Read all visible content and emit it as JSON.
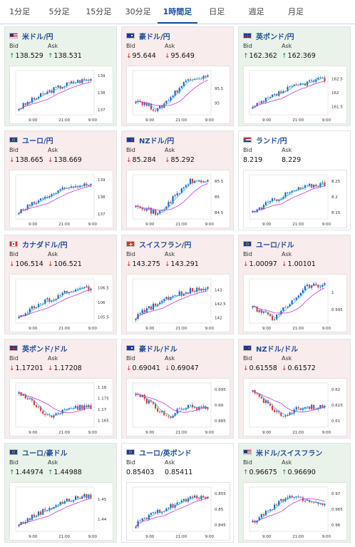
{
  "tabs": [
    "1分足",
    "5分足",
    "15分足",
    "30分足",
    "1時間足",
    "日足",
    "週足",
    "月足"
  ],
  "active_tab": "1時間足",
  "labels": {
    "bid": "Bid",
    "ask": "Ask"
  },
  "colors": {
    "up": "#1b8f2e",
    "down": "#d02020",
    "candle_up": "#1565c0",
    "candle_down": "#e53935",
    "ma_short": "#29b6f6",
    "ma_long": "#cc33cc"
  },
  "cards": [
    {
      "name": "米ドル/円",
      "dir": "up",
      "bid": "138.529",
      "ask": "138.531",
      "flags": [
        "us",
        "jp"
      ],
      "x_ticks": [
        "9:00",
        "21:00",
        "9:00"
      ],
      "y_ticks": [
        "139",
        "138",
        "137"
      ],
      "yr": [
        136.7,
        139.3
      ],
      "shape": "rise"
    },
    {
      "name": "豪ドル/円",
      "dir": "down",
      "bid": "95.644",
      "ask": "95.649",
      "flags": [
        "au",
        "jp"
      ],
      "x_ticks": [
        "9:00",
        "21:00",
        "9:00"
      ],
      "y_ticks": [
        "95.5",
        "95"
      ],
      "yr": [
        94.6,
        96.1
      ],
      "shape": "dipRise"
    },
    {
      "name": "英ポンド/円",
      "dir": "up",
      "bid": "162.362",
      "ask": "162.369",
      "flags": [
        "gb",
        "jp"
      ],
      "x_ticks": [
        "9:00",
        "21:00",
        "9:00"
      ],
      "y_ticks": [
        "162.5",
        "162",
        "161.5"
      ],
      "yr": [
        161.2,
        162.8
      ],
      "shape": "rise"
    },
    {
      "name": "ユーロ/円",
      "dir": "down",
      "bid": "138.665",
      "ask": "138.669",
      "flags": [
        "eu",
        "jp"
      ],
      "x_ticks": [
        "9:00",
        "21:00",
        "9:00"
      ],
      "y_ticks": [
        "139",
        "138",
        "137"
      ],
      "yr": [
        136.7,
        139.3
      ],
      "shape": "rise"
    },
    {
      "name": "NZドル/円",
      "dir": "down",
      "bid": "85.284",
      "ask": "85.292",
      "flags": [
        "nz",
        "jp"
      ],
      "x_ticks": [
        "9:00",
        "21:00",
        "9:00"
      ],
      "y_ticks": [
        "85.5",
        "85",
        "84.5"
      ],
      "yr": [
        84.3,
        85.7
      ],
      "shape": "dipRise"
    },
    {
      "name": "ランド/円",
      "dir": "flat",
      "bid": "8.219",
      "ask": "8.229",
      "flags": [
        "za",
        "jp"
      ],
      "x_ticks": [
        "9:00",
        "21:00",
        "9:00"
      ],
      "y_ticks": [
        "8.25",
        "8.2",
        "8.15"
      ],
      "yr": [
        8.13,
        8.27
      ],
      "shape": "rise"
    },
    {
      "name": "カナダドル/円",
      "dir": "down",
      "bid": "106.514",
      "ask": "106.521",
      "flags": [
        "ca",
        "jp"
      ],
      "x_ticks": [
        "9:00",
        "21:00",
        "9:00"
      ],
      "y_ticks": [
        "106.5",
        "106",
        "105.5"
      ],
      "yr": [
        105.3,
        106.8
      ],
      "shape": "rise"
    },
    {
      "name": "スイスフラン/円",
      "dir": "down",
      "bid": "143.275",
      "ask": "143.291",
      "flags": [
        "ch",
        "jp"
      ],
      "x_ticks": [
        "9:00",
        "21:00",
        "9:00"
      ],
      "y_ticks": [
        "143",
        "142.5",
        "142"
      ],
      "yr": [
        141.8,
        143.4
      ],
      "shape": "rise"
    },
    {
      "name": "ユーロ/ドル",
      "dir": "down",
      "bid": "1.00097",
      "ask": "1.00101",
      "flags": [
        "eu",
        "us"
      ],
      "x_ticks": [
        "9:00",
        "21:00",
        "9:00"
      ],
      "y_ticks": [
        "1",
        "0.995"
      ],
      "yr": [
        0.991,
        1.004
      ],
      "shape": "dipRise"
    },
    {
      "name": "英ポンド/ドル",
      "dir": "down",
      "bid": "1.17201",
      "ask": "1.17208",
      "flags": [
        "gb",
        "us"
      ],
      "x_ticks": [
        "9:00",
        "21:00",
        "9:00"
      ],
      "y_ticks": [
        "1.18",
        "1.175",
        "1.17",
        "1.165"
      ],
      "yr": [
        1.162,
        1.182
      ],
      "shape": "fallFlat"
    },
    {
      "name": "豪ドル/ドル",
      "dir": "down",
      "bid": "0.69041",
      "ask": "0.69047",
      "flags": [
        "au",
        "us"
      ],
      "x_ticks": [
        "9:00",
        "21:00",
        "9:00"
      ],
      "y_ticks": [
        "0.695",
        "0.69",
        "0.685"
      ],
      "yr": [
        0.683,
        0.697
      ],
      "shape": "fallFlat"
    },
    {
      "name": "NZドル/ドル",
      "dir": "down",
      "bid": "0.61558",
      "ask": "0.61572",
      "flags": [
        "nz",
        "us"
      ],
      "x_ticks": [
        "9:00",
        "21:00",
        "9:00"
      ],
      "y_ticks": [
        "0.62",
        "0.615",
        "0.61"
      ],
      "yr": [
        0.608,
        0.622
      ],
      "shape": "fallFlat"
    },
    {
      "name": "ユーロ/豪ドル",
      "dir": "up",
      "bid": "1.44974",
      "ask": "1.44988",
      "flags": [
        "eu",
        "au"
      ],
      "x_ticks": [
        "9:00",
        "21:00",
        "9:00"
      ],
      "y_ticks": [
        "1.45",
        "1.44"
      ],
      "yr": [
        1.434,
        1.456
      ],
      "shape": "rise"
    },
    {
      "name": "ユーロ/英ポンド",
      "dir": "flat",
      "bid": "0.85403",
      "ask": "0.85411",
      "flags": [
        "eu",
        "gb"
      ],
      "x_ticks": [
        "9:00",
        "21:00",
        "9:00"
      ],
      "y_ticks": [
        "0.855",
        "0.85",
        "0.845"
      ],
      "yr": [
        0.843,
        0.857
      ],
      "shape": "rise"
    },
    {
      "name": "米ドル/スイスフラン",
      "dir": "up",
      "bid": "0.96675",
      "ask": "0.96690",
      "flags": [
        "us",
        "ch"
      ],
      "x_ticks": [
        "9:00",
        "21:00",
        "9:00"
      ],
      "y_ticks": [
        "0.97",
        "0.965",
        "0.96"
      ],
      "yr": [
        0.958,
        0.972
      ],
      "shape": "riseDip"
    }
  ]
}
